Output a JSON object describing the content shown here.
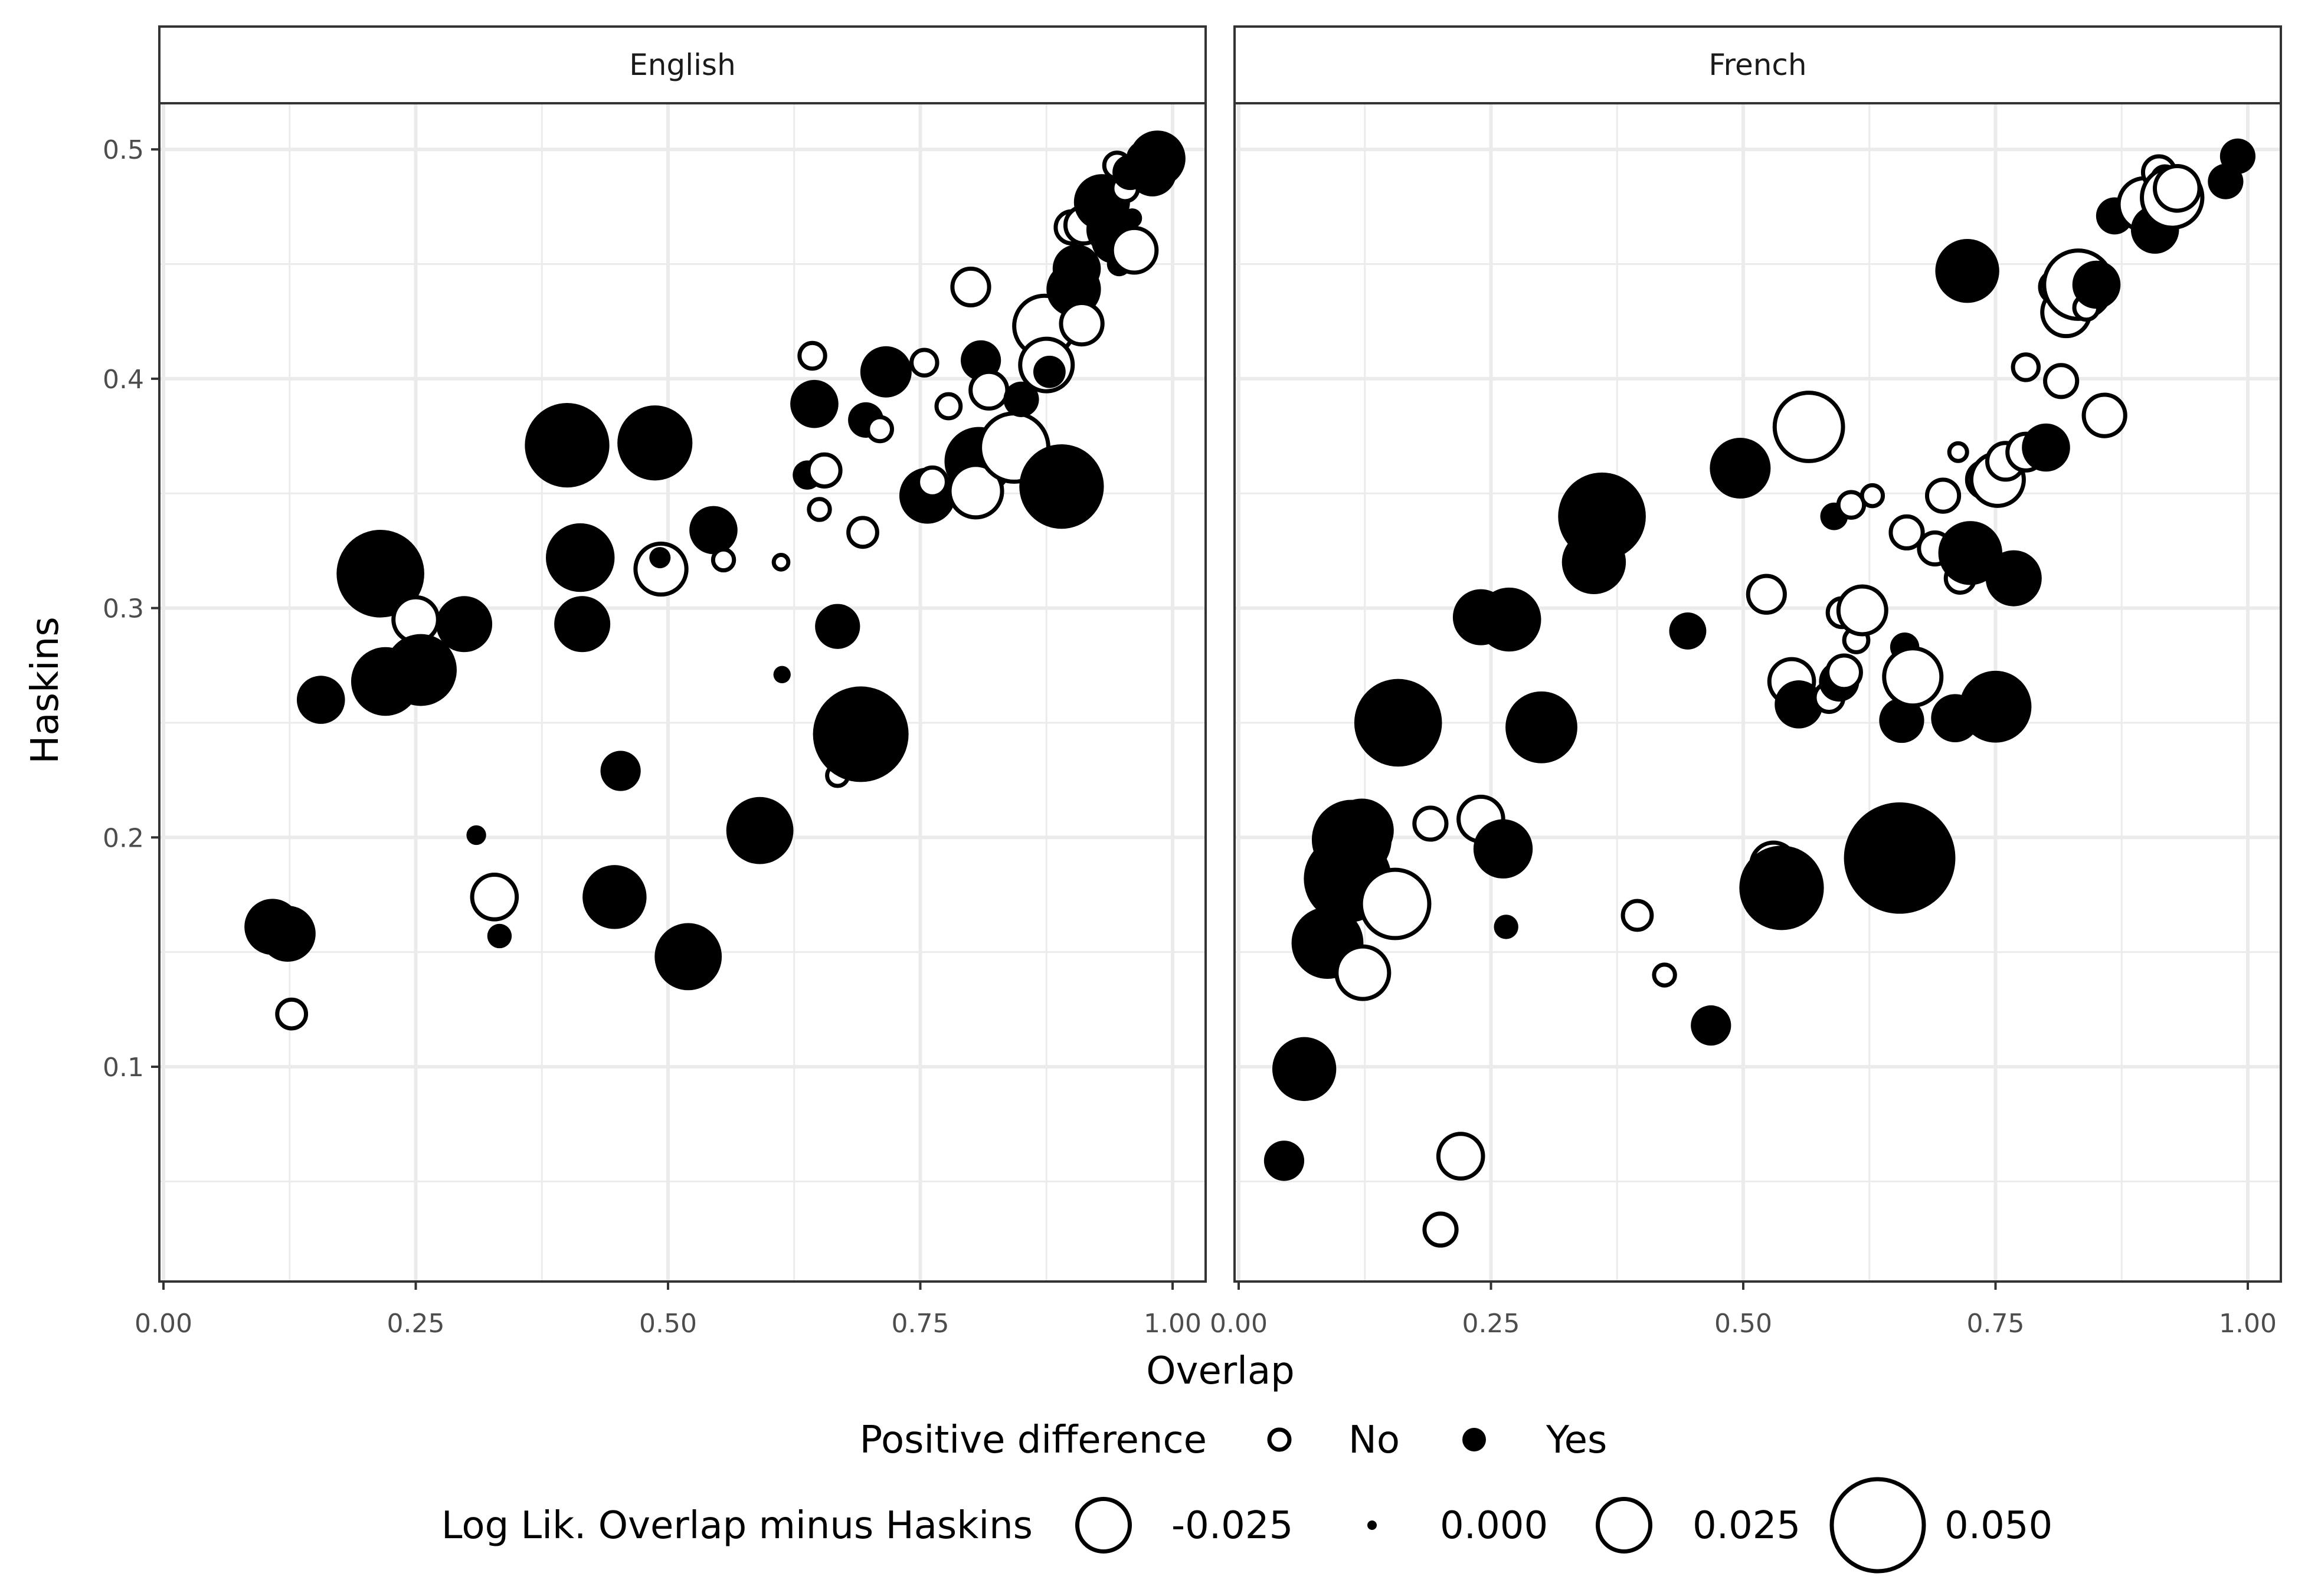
{
  "chart_data": {
    "type": "scatter",
    "xlabel": "Overlap",
    "ylabel": "Haskins",
    "xlim": [
      0,
      1
    ],
    "ylim": [
      0.02,
      0.52
    ],
    "x_ticks": [
      0,
      0.25,
      0.5,
      0.75,
      1
    ],
    "x_tick_labels": [
      "0.00",
      "0.25",
      "0.50",
      "0.75",
      "1.00"
    ],
    "y_ticks": [
      0.1,
      0.2,
      0.3,
      0.4,
      0.5
    ],
    "y_tick_labels": [
      "0.1",
      "0.2",
      "0.3",
      "0.4",
      "0.5"
    ],
    "grid": true,
    "legend_position": "bottom",
    "legend": {
      "fill_title": "Positive difference",
      "fill_entries": [
        {
          "label": "No",
          "filled": false
        },
        {
          "label": "Yes",
          "filled": true
        }
      ],
      "size_title": "Log Lik. Overlap minus Haskins",
      "size_entries": [
        {
          "label": "-0.025",
          "value": -0.025
        },
        {
          "label": "0.000",
          "value": 0.0
        },
        {
          "label": "0.025",
          "value": 0.025
        },
        {
          "label": "0.050",
          "value": 0.05
        }
      ]
    },
    "panels": [
      {
        "label": "English",
        "points": [
          {
            "x": 0.108,
            "y": 0.161,
            "d": 0.025
          },
          {
            "x": 0.123,
            "y": 0.158,
            "d": 0.025
          },
          {
            "x": 0.127,
            "y": 0.123,
            "d": -0.01
          },
          {
            "x": 0.156,
            "y": 0.26,
            "d": 0.02
          },
          {
            "x": 0.215,
            "y": 0.315,
            "d": 0.045
          },
          {
            "x": 0.22,
            "y": 0.268,
            "d": 0.033
          },
          {
            "x": 0.25,
            "y": 0.295,
            "d": -0.02
          },
          {
            "x": 0.255,
            "y": 0.273,
            "d": 0.035
          },
          {
            "x": 0.298,
            "y": 0.293,
            "d": 0.025
          },
          {
            "x": 0.31,
            "y": 0.201,
            "d": 0.002
          },
          {
            "x": 0.328,
            "y": 0.174,
            "d": -0.02
          },
          {
            "x": 0.333,
            "y": 0.157,
            "d": 0.005
          },
          {
            "x": 0.4,
            "y": 0.371,
            "d": 0.043
          },
          {
            "x": 0.413,
            "y": 0.322,
            "d": 0.033
          },
          {
            "x": 0.415,
            "y": 0.293,
            "d": 0.025
          },
          {
            "x": 0.447,
            "y": 0.174,
            "d": 0.03
          },
          {
            "x": 0.453,
            "y": 0.229,
            "d": 0.015
          },
          {
            "x": 0.487,
            "y": 0.372,
            "d": 0.037
          },
          {
            "x": 0.493,
            "y": 0.317,
            "d": -0.024
          },
          {
            "x": 0.492,
            "y": 0.322,
            "d": 0.003
          },
          {
            "x": 0.52,
            "y": 0.148,
            "d": 0.032
          },
          {
            "x": 0.545,
            "y": 0.334,
            "d": 0.02
          },
          {
            "x": 0.555,
            "y": 0.321,
            "d": -0.005
          },
          {
            "x": 0.591,
            "y": 0.203,
            "d": 0.032
          },
          {
            "x": 0.612,
            "y": 0.32,
            "d": -0.001
          },
          {
            "x": 0.613,
            "y": 0.271,
            "d": 0.0005
          },
          {
            "x": 0.638,
            "y": 0.358,
            "d": 0.008
          },
          {
            "x": 0.645,
            "y": 0.389,
            "d": 0.02
          },
          {
            "x": 0.643,
            "y": 0.41,
            "d": -0.008
          },
          {
            "x": 0.65,
            "y": 0.343,
            "d": -0.005
          },
          {
            "x": 0.655,
            "y": 0.36,
            "d": -0.012
          },
          {
            "x": 0.668,
            "y": 0.292,
            "d": 0.018
          },
          {
            "x": 0.668,
            "y": 0.227,
            "d": -0.005
          },
          {
            "x": 0.691,
            "y": 0.245,
            "d": 0.05
          },
          {
            "x": 0.693,
            "y": 0.333,
            "d": -0.01
          },
          {
            "x": 0.696,
            "y": 0.382,
            "d": 0.012
          },
          {
            "x": 0.71,
            "y": 0.378,
            "d": -0.007
          },
          {
            "x": 0.716,
            "y": 0.403,
            "d": 0.022
          },
          {
            "x": 0.754,
            "y": 0.407,
            "d": -0.008
          },
          {
            "x": 0.757,
            "y": 0.349,
            "d": 0.025
          },
          {
            "x": 0.762,
            "y": 0.355,
            "d": -0.01
          },
          {
            "x": 0.778,
            "y": 0.388,
            "d": -0.007
          },
          {
            "x": 0.79,
            "y": 0.362,
            "d": -0.006
          },
          {
            "x": 0.8,
            "y": 0.44,
            "d": -0.015
          },
          {
            "x": 0.808,
            "y": 0.364,
            "d": 0.033
          },
          {
            "x": 0.805,
            "y": 0.351,
            "d": -0.025
          },
          {
            "x": 0.81,
            "y": 0.408,
            "d": 0.015
          },
          {
            "x": 0.818,
            "y": 0.395,
            "d": -0.015
          },
          {
            "x": 0.835,
            "y": 0.381,
            "d": 0.002
          },
          {
            "x": 0.843,
            "y": 0.37,
            "d": -0.035
          },
          {
            "x": 0.85,
            "y": 0.391,
            "d": 0.012
          },
          {
            "x": 0.873,
            "y": 0.423,
            "d": -0.03
          },
          {
            "x": 0.875,
            "y": 0.406,
            "d": -0.025
          },
          {
            "x": 0.878,
            "y": 0.403,
            "d": 0.01
          },
          {
            "x": 0.89,
            "y": 0.353,
            "d": 0.043
          },
          {
            "x": 0.9,
            "y": 0.466,
            "d": -0.012
          },
          {
            "x": 0.902,
            "y": 0.439,
            "d": 0.024
          },
          {
            "x": 0.905,
            "y": 0.448,
            "d": 0.02
          },
          {
            "x": 0.91,
            "y": 0.424,
            "d": -0.018
          },
          {
            "x": 0.912,
            "y": 0.467,
            "d": -0.015
          },
          {
            "x": 0.93,
            "y": 0.477,
            "d": 0.025
          },
          {
            "x": 0.94,
            "y": 0.465,
            "d": 0.022
          },
          {
            "x": 0.942,
            "y": 0.46,
            "d": 0.018
          },
          {
            "x": 0.945,
            "y": 0.493,
            "d": -0.008
          },
          {
            "x": 0.947,
            "y": 0.45,
            "d": 0.005
          },
          {
            "x": 0.953,
            "y": 0.483,
            "d": -0.008
          },
          {
            "x": 0.958,
            "y": 0.49,
            "d": 0.012
          },
          {
            "x": 0.96,
            "y": 0.47,
            "d": 0.002
          },
          {
            "x": 0.962,
            "y": 0.456,
            "d": -0.02
          },
          {
            "x": 0.972,
            "y": 0.496,
            "d": -0.012
          },
          {
            "x": 0.98,
            "y": 0.49,
            "d": 0.02
          },
          {
            "x": 0.985,
            "y": 0.496,
            "d": 0.025
          }
        ]
      },
      {
        "label": "French",
        "points": [
          {
            "x": 0.045,
            "y": 0.059,
            "d": 0.015
          },
          {
            "x": 0.065,
            "y": 0.099,
            "d": 0.03
          },
          {
            "x": 0.088,
            "y": 0.154,
            "d": 0.035
          },
          {
            "x": 0.108,
            "y": 0.182,
            "d": 0.045
          },
          {
            "x": 0.112,
            "y": 0.199,
            "d": 0.04
          },
          {
            "x": 0.122,
            "y": 0.203,
            "d": 0.03
          },
          {
            "x": 0.123,
            "y": 0.141,
            "d": -0.025
          },
          {
            "x": 0.155,
            "y": 0.171,
            "d": -0.035
          },
          {
            "x": 0.158,
            "y": 0.25,
            "d": 0.045
          },
          {
            "x": 0.19,
            "y": 0.206,
            "d": -0.012
          },
          {
            "x": 0.2,
            "y": 0.029,
            "d": -0.012
          },
          {
            "x": 0.22,
            "y": 0.061,
            "d": -0.02
          },
          {
            "x": 0.24,
            "y": 0.208,
            "d": -0.02
          },
          {
            "x": 0.24,
            "y": 0.296,
            "d": 0.025
          },
          {
            "x": 0.262,
            "y": 0.195,
            "d": 0.027
          },
          {
            "x": 0.265,
            "y": 0.161,
            "d": 0.005
          },
          {
            "x": 0.268,
            "y": 0.295,
            "d": 0.03
          },
          {
            "x": 0.3,
            "y": 0.248,
            "d": 0.035
          },
          {
            "x": 0.352,
            "y": 0.32,
            "d": 0.03
          },
          {
            "x": 0.36,
            "y": 0.34,
            "d": 0.045
          },
          {
            "x": 0.395,
            "y": 0.166,
            "d": -0.01
          },
          {
            "x": 0.422,
            "y": 0.14,
            "d": -0.005
          },
          {
            "x": 0.445,
            "y": 0.29,
            "d": 0.013
          },
          {
            "x": 0.468,
            "y": 0.118,
            "d": 0.015
          },
          {
            "x": 0.497,
            "y": 0.361,
            "d": 0.028
          },
          {
            "x": 0.523,
            "y": 0.306,
            "d": -0.015
          },
          {
            "x": 0.53,
            "y": 0.188,
            "d": -0.02
          },
          {
            "x": 0.538,
            "y": 0.178,
            "d": 0.043
          },
          {
            "x": 0.548,
            "y": 0.268,
            "d": -0.02
          },
          {
            "x": 0.555,
            "y": 0.258,
            "d": 0.02
          },
          {
            "x": 0.565,
            "y": 0.379,
            "d": -0.035
          },
          {
            "x": 0.585,
            "y": 0.261,
            "d": -0.01
          },
          {
            "x": 0.59,
            "y": 0.34,
            "d": 0.007
          },
          {
            "x": 0.595,
            "y": 0.268,
            "d": 0.015
          },
          {
            "x": 0.598,
            "y": 0.298,
            "d": -0.01
          },
          {
            "x": 0.6,
            "y": 0.272,
            "d": -0.013
          },
          {
            "x": 0.607,
            "y": 0.345,
            "d": -0.008
          },
          {
            "x": 0.612,
            "y": 0.286,
            "d": -0.007
          },
          {
            "x": 0.618,
            "y": 0.299,
            "d": -0.022
          },
          {
            "x": 0.628,
            "y": 0.349,
            "d": -0.005
          },
          {
            "x": 0.655,
            "y": 0.191,
            "d": 0.06
          },
          {
            "x": 0.657,
            "y": 0.251,
            "d": 0.018
          },
          {
            "x": 0.66,
            "y": 0.283,
            "d": 0.008
          },
          {
            "x": 0.662,
            "y": 0.333,
            "d": -0.012
          },
          {
            "x": 0.668,
            "y": 0.27,
            "d": -0.028
          },
          {
            "x": 0.69,
            "y": 0.326,
            "d": -0.012
          },
          {
            "x": 0.698,
            "y": 0.349,
            "d": -0.012
          },
          {
            "x": 0.71,
            "y": 0.252,
            "d": 0.02
          },
          {
            "x": 0.715,
            "y": 0.313,
            "d": -0.01
          },
          {
            "x": 0.713,
            "y": 0.368,
            "d": -0.003
          },
          {
            "x": 0.722,
            "y": 0.447,
            "d": 0.03
          },
          {
            "x": 0.725,
            "y": 0.324,
            "d": 0.03
          },
          {
            "x": 0.74,
            "y": 0.356,
            "d": -0.015
          },
          {
            "x": 0.75,
            "y": 0.257,
            "d": 0.035
          },
          {
            "x": 0.752,
            "y": 0.356,
            "d": -0.025
          },
          {
            "x": 0.76,
            "y": 0.364,
            "d": -0.015
          },
          {
            "x": 0.768,
            "y": 0.313,
            "d": 0.025
          },
          {
            "x": 0.78,
            "y": 0.368,
            "d": -0.015
          },
          {
            "x": 0.78,
            "y": 0.405,
            "d": -0.008
          },
          {
            "x": 0.8,
            "y": 0.37,
            "d": 0.02
          },
          {
            "x": 0.81,
            "y": 0.44,
            "d": -0.012
          },
          {
            "x": 0.815,
            "y": 0.399,
            "d": -0.012
          },
          {
            "x": 0.82,
            "y": 0.429,
            "d": -0.022
          },
          {
            "x": 0.832,
            "y": 0.441,
            "d": -0.035
          },
          {
            "x": 0.84,
            "y": 0.431,
            "d": -0.007
          },
          {
            "x": 0.85,
            "y": 0.441,
            "d": 0.02
          },
          {
            "x": 0.858,
            "y": 0.384,
            "d": -0.018
          },
          {
            "x": 0.868,
            "y": 0.471,
            "d": 0.013
          },
          {
            "x": 0.898,
            "y": 0.476,
            "d": -0.025
          },
          {
            "x": 0.908,
            "y": 0.465,
            "d": 0.02
          },
          {
            "x": 0.912,
            "y": 0.49,
            "d": -0.012
          },
          {
            "x": 0.918,
            "y": 0.487,
            "d": -0.008
          },
          {
            "x": 0.925,
            "y": 0.479,
            "d": -0.03
          },
          {
            "x": 0.93,
            "y": 0.483,
            "d": -0.02
          },
          {
            "x": 0.978,
            "y": 0.486,
            "d": 0.012
          },
          {
            "x": 0.99,
            "y": 0.497,
            "d": 0.012
          }
        ]
      }
    ]
  }
}
